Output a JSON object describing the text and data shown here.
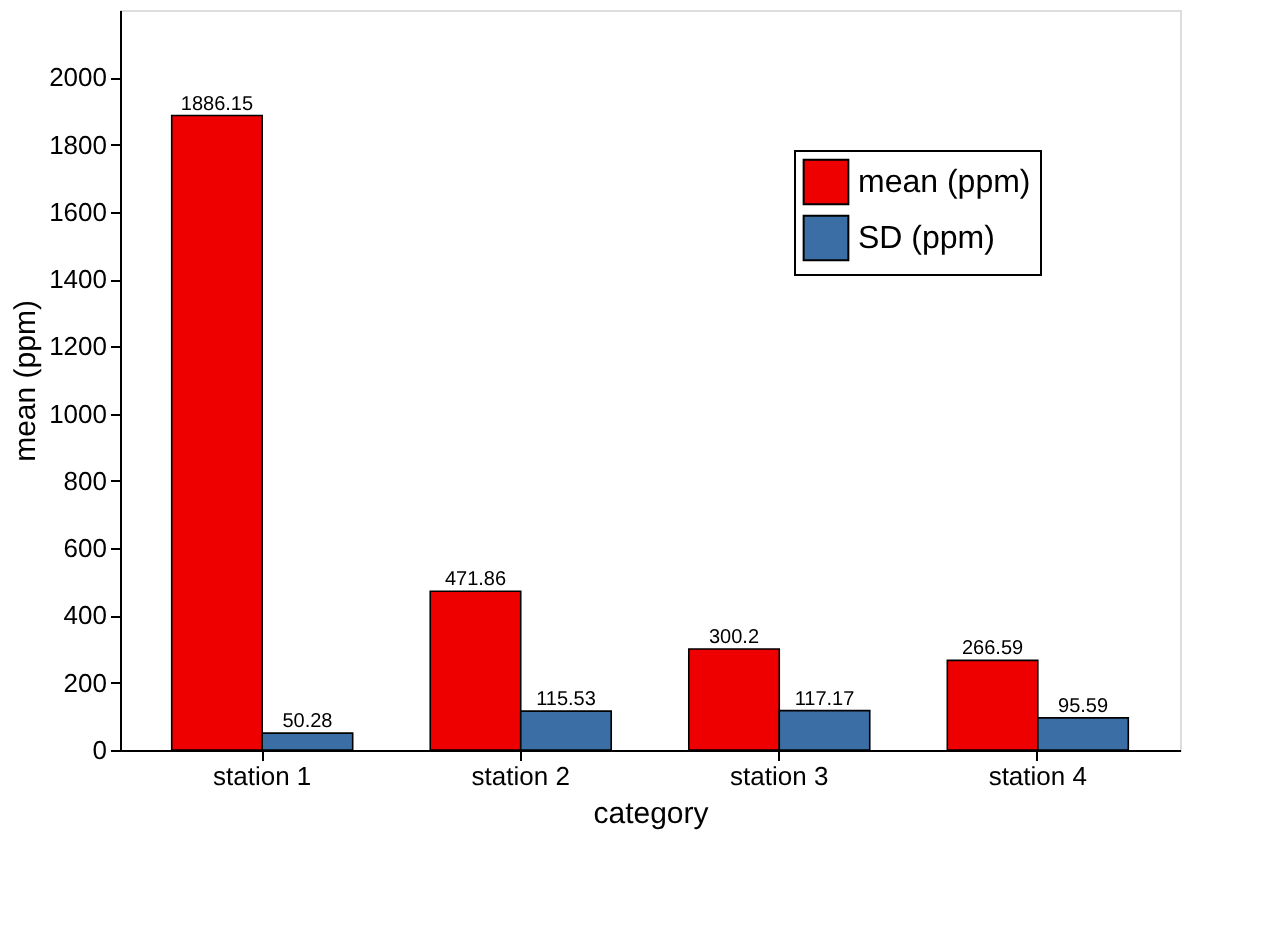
{
  "chart_data": {
    "type": "bar",
    "xlabel": "category",
    "ylabel": "mean (ppm)",
    "categories": [
      "station 1",
      "station 2",
      "station 3",
      "station 4"
    ],
    "series": [
      {
        "name": "mean (ppm)",
        "color": "#ee0000",
        "values": [
          1886.15,
          471.86,
          300.2,
          266.59
        ]
      },
      {
        "name": "SD (ppm)",
        "color": "#3a6ea5",
        "values": [
          50.28,
          115.53,
          117.17,
          95.59
        ]
      }
    ],
    "ylim": [
      0,
      2200
    ],
    "yticks": [
      0,
      200,
      400,
      600,
      800,
      1000,
      1200,
      1400,
      1600,
      1800,
      2000
    ],
    "data_labels": true,
    "legend": "top right",
    "grid": false
  }
}
